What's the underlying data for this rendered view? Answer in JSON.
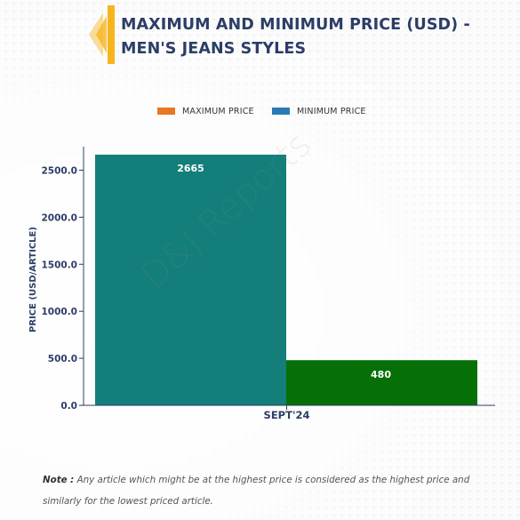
{
  "title": "MAXIMUM AND MINIMUM PRICE (USD) - MEN'S JEANS STYLES",
  "colors": {
    "title": "#2c3e66",
    "accent_yellow": "#f6b51e",
    "maximum": "#e87722",
    "minimum": "#2a7ab5",
    "bar_max_fill": "#137e7a",
    "bar_min_fill": "#067006",
    "axis": "#2c3e66"
  },
  "watermark": "D&J Reports",
  "note": {
    "head": "Note :",
    "text": " Any article which might be at the highest price is considered as the highest price and similarly for the lowest priced article."
  },
  "chart_data": {
    "type": "bar",
    "categories": [
      "SEPT'24"
    ],
    "series": [
      {
        "name": "MAXIMUM PRICE",
        "values": [
          2665
        ]
      },
      {
        "name": "MINIMUM PRICE",
        "values": [
          480
        ]
      }
    ],
    "ylabel": "PRICE (USD/ARTICLE)",
    "xlabel": "",
    "ylim": [
      0,
      2750
    ],
    "yticks": [
      0,
      500,
      1000,
      1500,
      2000,
      2500
    ],
    "ytick_labels": [
      "0.0",
      "500.0",
      "1000.0",
      "1500.0",
      "2000.0",
      "2500.0"
    ],
    "data_labels": [
      "2665",
      "480"
    ],
    "legend_position": "top-center",
    "grid": false
  }
}
